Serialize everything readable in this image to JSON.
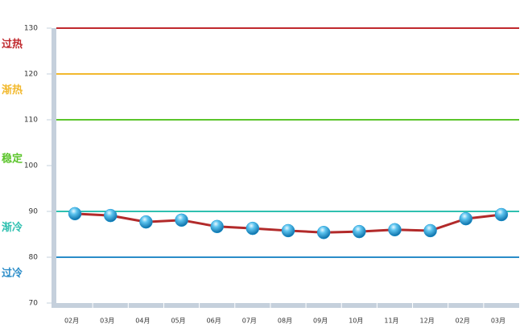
{
  "chart_data": {
    "type": "line",
    "categories": [
      "02月",
      "03月",
      "04月",
      "05月",
      "06月",
      "07月",
      "08月",
      "09月",
      "10月",
      "11月",
      "12月",
      "02月",
      "03月"
    ],
    "values": [
      89.5,
      89.1,
      87.7,
      88.1,
      86.7,
      86.3,
      85.8,
      85.4,
      85.6,
      86.0,
      85.8,
      88.4,
      89.3
    ],
    "color": "#b22a2a",
    "marker_color": "#1a9ad6",
    "ylim": [
      70,
      130
    ],
    "yticks": [
      70,
      80,
      90,
      100,
      110,
      120,
      130
    ],
    "zones": [
      {
        "label": "过热",
        "value": 130,
        "color": "#c0282d"
      },
      {
        "label": "渐热",
        "value": 120,
        "color": "#f2b92e"
      },
      {
        "label": "稳定",
        "value": 110,
        "color": "#5cc52c"
      },
      {
        "label": "渐冷",
        "value": 90,
        "color": "#2fc0b0"
      },
      {
        "label": "过冷",
        "value": 80,
        "color": "#2a8cc8"
      }
    ]
  }
}
